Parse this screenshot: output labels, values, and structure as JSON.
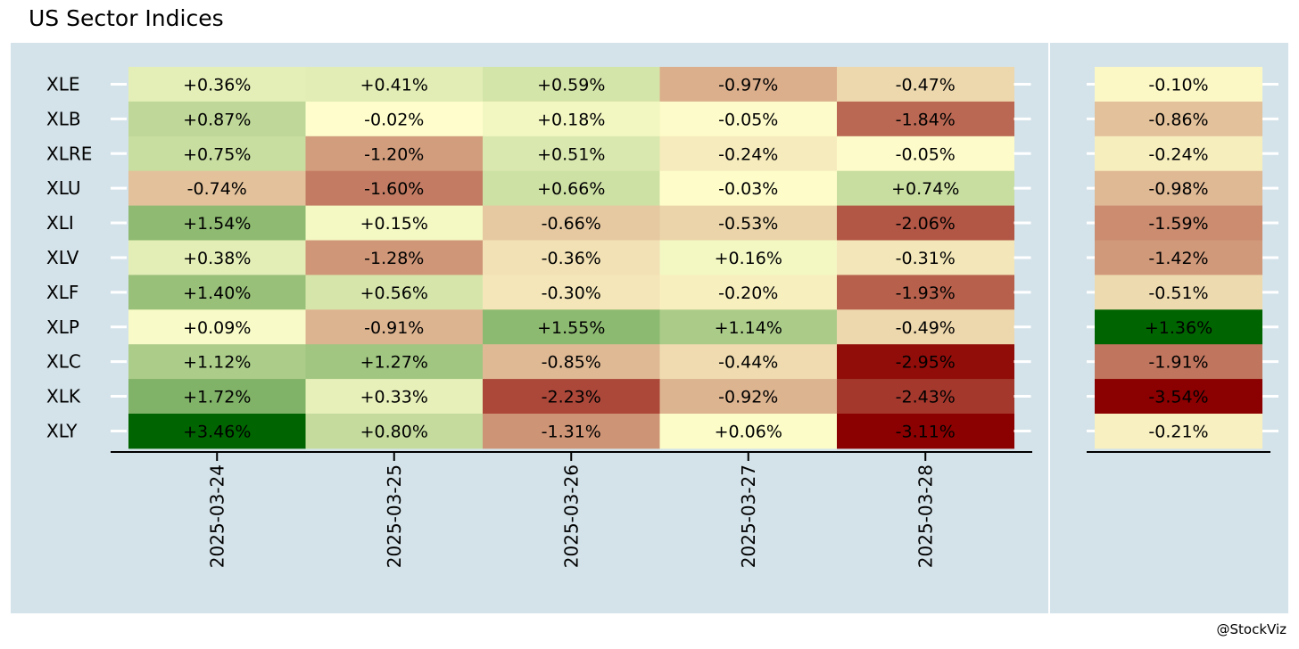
{
  "title": "US Sector Indices",
  "watermark": "@StockViz",
  "chart_data": {
    "type": "heatmap",
    "title": "US Sector Indices",
    "rows": [
      "XLE",
      "XLB",
      "XLRE",
      "XLU",
      "XLI",
      "XLV",
      "XLF",
      "XLP",
      "XLC",
      "XLK",
      "XLY"
    ],
    "columns": [
      "2025-03-24",
      "2025-03-25",
      "2025-03-26",
      "2025-03-27",
      "2025-03-28"
    ],
    "values": [
      [
        0.36,
        0.41,
        0.59,
        -0.97,
        -0.47
      ],
      [
        0.87,
        -0.02,
        0.18,
        -0.05,
        -1.84
      ],
      [
        0.75,
        -1.2,
        0.51,
        -0.24,
        -0.05
      ],
      [
        -0.74,
        -1.6,
        0.66,
        -0.03,
        0.74
      ],
      [
        1.54,
        0.15,
        -0.66,
        -0.53,
        -2.06
      ],
      [
        0.38,
        -1.28,
        -0.36,
        0.16,
        -0.31
      ],
      [
        1.4,
        0.56,
        -0.3,
        -0.2,
        -1.93
      ],
      [
        0.09,
        -0.91,
        1.55,
        1.14,
        -0.49
      ],
      [
        1.12,
        1.27,
        -0.85,
        -0.44,
        -2.95
      ],
      [
        1.72,
        0.33,
        -2.23,
        -0.92,
        -2.43
      ],
      [
        3.46,
        0.8,
        -1.31,
        0.06,
        -3.11
      ]
    ],
    "labels": [
      [
        "+0.36%",
        "+0.41%",
        "+0.59%",
        "-0.97%",
        "-0.47%"
      ],
      [
        "+0.87%",
        "-0.02%",
        "+0.18%",
        "-0.05%",
        "-1.84%"
      ],
      [
        "+0.75%",
        "-1.20%",
        "+0.51%",
        "-0.24%",
        "-0.05%"
      ],
      [
        "-0.74%",
        "-1.60%",
        "+0.66%",
        "-0.03%",
        "+0.74%"
      ],
      [
        "+1.54%",
        "+0.15%",
        "-0.66%",
        "-0.53%",
        "-2.06%"
      ],
      [
        "+0.38%",
        "-1.28%",
        "-0.36%",
        "+0.16%",
        "-0.31%"
      ],
      [
        "+1.40%",
        "+0.56%",
        "-0.30%",
        "-0.20%",
        "-1.93%"
      ],
      [
        "+0.09%",
        "-0.91%",
        "+1.55%",
        "+1.14%",
        "-0.49%"
      ],
      [
        "+1.12%",
        "+1.27%",
        "-0.85%",
        "-0.44%",
        "-2.95%"
      ],
      [
        "+1.72%",
        "+0.33%",
        "-2.23%",
        "-0.92%",
        "-2.43%"
      ],
      [
        "+3.46%",
        "+0.80%",
        "-1.31%",
        "+0.06%",
        "-3.11%"
      ]
    ],
    "summary_values": [
      -0.1,
      -0.86,
      -0.24,
      -0.98,
      -1.59,
      -1.42,
      -0.51,
      1.36,
      -1.91,
      -3.54,
      -0.21
    ],
    "summary_labels": [
      "-0.10%",
      "-0.86%",
      "-0.24%",
      "-0.98%",
      "-1.59%",
      "-1.42%",
      "-0.51%",
      "+1.36%",
      "-1.91%",
      "-3.54%",
      "-0.21%"
    ],
    "grid": false,
    "legend": "none"
  },
  "colors": {
    "panel_background": "#d4e3ea",
    "positive_max": "#006400",
    "neutral": "#ffffcc",
    "negative_max": "#8b0000",
    "axis": "#000000",
    "tick": "#ffffff"
  }
}
